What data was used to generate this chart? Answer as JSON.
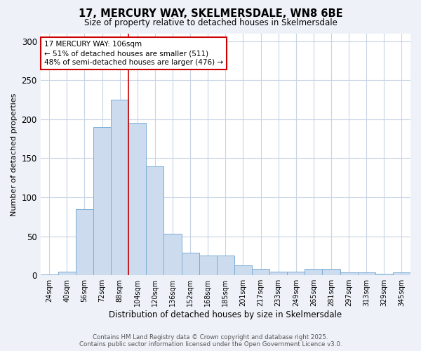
{
  "title_line1": "17, MERCURY WAY, SKELMERSDALE, WN8 6BE",
  "title_line2": "Size of property relative to detached houses in Skelmersdale",
  "xlabel": "Distribution of detached houses by size in Skelmersdale",
  "ylabel": "Number of detached properties",
  "categories": [
    "24sqm",
    "40sqm",
    "56sqm",
    "72sqm",
    "88sqm",
    "104sqm",
    "120sqm",
    "136sqm",
    "152sqm",
    "168sqm",
    "185sqm",
    "201sqm",
    "217sqm",
    "233sqm",
    "249sqm",
    "265sqm",
    "281sqm",
    "297sqm",
    "313sqm",
    "329sqm",
    "345sqm"
  ],
  "values": [
    1,
    5,
    85,
    190,
    225,
    195,
    140,
    53,
    29,
    25,
    25,
    13,
    8,
    5,
    5,
    8,
    8,
    4,
    4,
    2,
    4
  ],
  "bar_color": "#ccdcee",
  "bar_edge_color": "#7badd4",
  "vline_color": "#cc0000",
  "vline_x": 4.5,
  "annotation_text": "17 MERCURY WAY: 106sqm\n← 51% of detached houses are smaller (511)\n48% of semi-detached houses are larger (476) →",
  "annotation_box_color": "#cc0000",
  "ylim": [
    0,
    310
  ],
  "yticks": [
    0,
    50,
    100,
    150,
    200,
    250,
    300
  ],
  "footer_line1": "Contains HM Land Registry data © Crown copyright and database right 2025.",
  "footer_line2": "Contains public sector information licensed under the Open Government Licence v3.0.",
  "bg_color": "#eef2f8",
  "plot_bg_color": "#ffffff",
  "grid_color": "#c8d4e4"
}
